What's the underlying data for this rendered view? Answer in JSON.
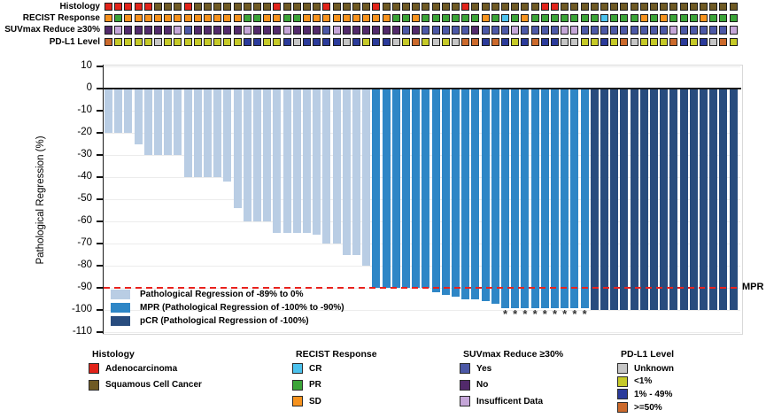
{
  "figure": {
    "y_axis_title": "Pathological Regression (%)"
  },
  "tracks": [
    {
      "key": "histology",
      "label": "Histology",
      "cells": "AAAAASSSASSSSSSSSASSSSASSSSASSSSSSSSASSSSSSSAASSSSSSSSSSSSSSSSSS",
      "categories": {
        "A": "Adenocarcinoma",
        "S": "Squamous Cell Cancer"
      },
      "colors": {
        "A": "#e2231a",
        "S": "#6f5a24"
      }
    },
    {
      "key": "recist-response",
      "label": "RECIST Response",
      "cells": "DPDDDDDDDDDDDDPPDDPPDDDDDDDDDPPDPPPPPPDPCPDPPPPPPPCPPPDPDPPPDPPP",
      "categories": {
        "C": "CR",
        "P": "PR",
        "D": "SD"
      },
      "colors": {
        "C": "#4cc2ed",
        "P": "#3ba438",
        "D": "#f6921e"
      }
    },
    {
      "key": "suvmax-reduce",
      "label": "SUVmax Reduce ≥30%",
      "cells": "NINNNNNIYNNNNNINNNINNNYINNNNNNYNYYYYYNYYYIYYYYIIYYYYYYYYYIYYYYYI",
      "categories": {
        "Y": "Yes",
        "N": "No",
        "I": "Insufficent Data"
      },
      "colors": {
        "Y": "#4c58a6",
        "N": "#522a6b",
        "I": "#c5a6d8"
      }
    },
    {
      "key": "pdl1-level",
      "label": "PD-L1 Level",
      "cells": "HLLLLULLLLLLLLBBLLBUBBBBUBLBBULHLULUHHBHBLBHBBUULLBLHULLLHBLBUHL",
      "categories": {
        "U": "Unknown",
        "L": "<1%",
        "B": "1% - 49%",
        "H": ">=50%"
      },
      "colors": {
        "U": "#c6c6c6",
        "L": "#c6ca28",
        "B": "#2b3b9b",
        "H": "#cc6a2c"
      }
    }
  ],
  "chart_data": {
    "type": "bar",
    "title": "",
    "xlabel": "",
    "ylabel": "Pathological Regression (%)",
    "ylim": [
      -110,
      10
    ],
    "yticks": [
      10,
      0,
      -10,
      -20,
      -30,
      -40,
      -50,
      -60,
      -70,
      -80,
      -90,
      -100,
      -110
    ],
    "grid": true,
    "values": [
      -20,
      -20,
      -20,
      -25,
      -30,
      -30,
      -30,
      -30,
      -40,
      -40,
      -40,
      -40,
      -42,
      -54,
      -60,
      -60,
      -60,
      -65,
      -65,
      -65,
      -65,
      -66,
      -70,
      -70,
      -75,
      -75,
      -80,
      -90,
      -90,
      -90,
      -90,
      -90,
      -90,
      -92,
      -93,
      -94,
      -95,
      -95,
      -96,
      -97,
      -99,
      -99,
      -99,
      -99,
      -99,
      -99,
      -99,
      -99,
      -99,
      -100,
      -100,
      -100,
      -100,
      -100,
      -100,
      -100,
      -100,
      -100,
      -100,
      -100,
      -100,
      -100,
      -100,
      -100
    ],
    "group_counts": {
      "regression": 27,
      "mpr": 22,
      "pcr": 15
    },
    "group_colors": {
      "regression": "#b9cde4",
      "mpr": "#2e86c6",
      "pcr": "#284c7e"
    },
    "asterisk_bars": [
      41,
      42,
      43,
      44,
      45,
      46,
      47,
      48,
      49
    ],
    "asterisk_symbol": "*",
    "threshold_line": {
      "value": -90,
      "label": "MPR",
      "color": "#e8211d",
      "style": "dashed"
    }
  },
  "plot_legend": {
    "items": [
      {
        "label": "Pathological Regression of -89% to 0%",
        "color": "#b9cde4"
      },
      {
        "label": "MPR (Pathological Regression of -100% to -90%)",
        "color": "#2e86c6"
      },
      {
        "label": "pCR (Pathological Regression of -100%)",
        "color": "#284c7e"
      }
    ]
  },
  "bottom_legends": [
    {
      "title": "Histology",
      "items": [
        {
          "label": "Adenocarcinoma",
          "color": "#e2231a"
        },
        {
          "label": "Squamous Cell Cancer",
          "color": "#6f5a24"
        }
      ]
    },
    {
      "title": "RECIST Response",
      "items": [
        {
          "label": "CR",
          "color": "#4cc2ed"
        },
        {
          "label": "PR",
          "color": "#3ba438"
        },
        {
          "label": "SD",
          "color": "#f6921e"
        }
      ]
    },
    {
      "title": "SUVmax Reduce ≥30%",
      "items": [
        {
          "label": "Yes",
          "color": "#4c58a6"
        },
        {
          "label": "No",
          "color": "#522a6b"
        },
        {
          "label": "Insufficent Data",
          "color": "#c5a6d8"
        }
      ]
    },
    {
      "title": "PD-L1 Level",
      "items": [
        {
          "label": "Unknown",
          "color": "#c6c6c6"
        },
        {
          "label": "<1%",
          "color": "#c6ca28"
        },
        {
          "label": "1% - 49%",
          "color": "#2b3b9b"
        },
        {
          "label": ">=50%",
          "color": "#cc6a2c"
        }
      ]
    }
  ]
}
